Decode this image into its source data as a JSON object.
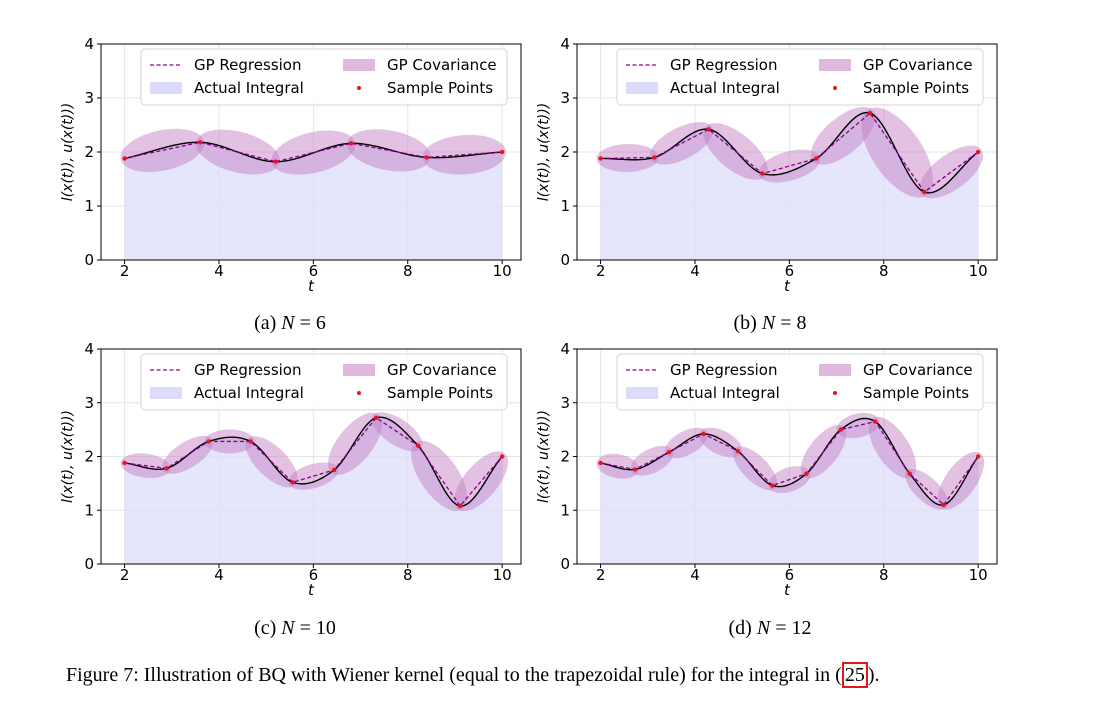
{
  "figure": {
    "caption_main": "Figure 7: Illustration of BQ with Wiener kernel (equal to the trapezoidal rule) for the integral in",
    "caption_ref_open": "(",
    "caption_ref": "25",
    "caption_ref_close": ").",
    "colors": {
      "regression": "#8b008b",
      "covariance": "#c27ec2",
      "integral": "#dcdcfa",
      "function": "#000000",
      "sample": "#e8141c",
      "ref_box": "#e8141c"
    }
  },
  "chart_data": [
    {
      "type": "line",
      "subcaption_prefix": "(a)",
      "subcaption_var": "N",
      "subcaption_eq": " = 6",
      "xlabel": "t",
      "ylabel": "l(x(t)), u(x(t)))",
      "xlim": [
        1.5,
        10.4
      ],
      "ylim": [
        0,
        4
      ],
      "xticks": [
        "2",
        "4",
        "6",
        "8",
        "10"
      ],
      "yticks": [
        "0",
        "1",
        "2",
        "3",
        "4"
      ],
      "grid": true,
      "legend_position": "top",
      "legend": [
        "GP Regression",
        "GP Covariance",
        "Actual Integral",
        "Sample Points"
      ],
      "samples": {
        "x": [
          2.0,
          3.6,
          5.2,
          6.8,
          8.4,
          10.0
        ],
        "y": [
          1.88,
          2.18,
          1.82,
          2.16,
          1.9,
          2.0
        ]
      }
    },
    {
      "type": "line",
      "subcaption_prefix": "(b)",
      "subcaption_var": "N",
      "subcaption_eq": " = 8",
      "xlabel": "t",
      "ylabel": "l(x(t)), u(x(t)))",
      "xlim": [
        1.5,
        10.4
      ],
      "ylim": [
        0,
        4
      ],
      "xticks": [
        "2",
        "4",
        "6",
        "8",
        "10"
      ],
      "yticks": [
        "0",
        "1",
        "2",
        "3",
        "4"
      ],
      "grid": true,
      "legend_position": "top",
      "legend": [
        "GP Regression",
        "GP Covariance",
        "Actual Integral",
        "Sample Points"
      ],
      "samples": {
        "x": [
          2.0,
          3.14,
          4.29,
          5.43,
          6.57,
          7.71,
          8.86,
          10.0
        ],
        "y": [
          1.88,
          1.9,
          2.42,
          1.6,
          1.88,
          2.72,
          1.26,
          2.0
        ]
      }
    },
    {
      "type": "line",
      "subcaption_prefix": "(c)",
      "subcaption_var": "N",
      "subcaption_eq": " = 10",
      "xlabel": "t",
      "ylabel": "l(x(t), u(x(t)))",
      "xlim": [
        1.5,
        10.4
      ],
      "ylim": [
        0,
        4
      ],
      "xticks": [
        "2",
        "4",
        "6",
        "8",
        "10"
      ],
      "yticks": [
        "0",
        "1",
        "2",
        "3",
        "4"
      ],
      "grid": true,
      "legend_position": "top",
      "legend": [
        "GP Regression",
        "GP Covariance",
        "Actual Integral",
        "Sample Points"
      ],
      "samples": {
        "x": [
          2.0,
          2.89,
          3.78,
          4.67,
          5.56,
          6.44,
          7.33,
          8.22,
          9.11,
          10.0
        ],
        "y": [
          1.88,
          1.78,
          2.28,
          2.28,
          1.52,
          1.75,
          2.72,
          2.2,
          1.08,
          2.0
        ]
      }
    },
    {
      "type": "line",
      "subcaption_prefix": "(d)",
      "subcaption_var": "N",
      "subcaption_eq": " = 12",
      "xlabel": "t",
      "ylabel": "l(x(t), u(x(t)))",
      "xlim": [
        1.5,
        10.4
      ],
      "ylim": [
        0,
        4
      ],
      "xticks": [
        "2",
        "4",
        "6",
        "8",
        "10"
      ],
      "yticks": [
        "0",
        "1",
        "2",
        "3",
        "4"
      ],
      "grid": true,
      "legend_position": "top",
      "legend": [
        "GP Regression",
        "GP Covariance",
        "Actual Integral",
        "Sample Points"
      ],
      "samples": {
        "x": [
          2.0,
          2.73,
          3.45,
          4.18,
          4.91,
          5.64,
          6.36,
          7.09,
          7.82,
          8.55,
          9.27,
          10.0
        ],
        "y": [
          1.88,
          1.76,
          2.08,
          2.42,
          2.1,
          1.46,
          1.68,
          2.5,
          2.65,
          1.68,
          1.1,
          2.0
        ]
      }
    }
  ]
}
